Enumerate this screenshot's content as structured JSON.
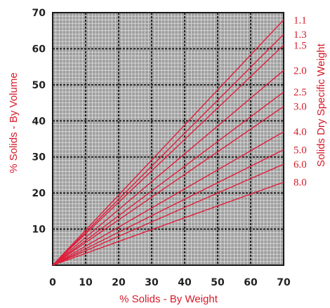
{
  "chart_data": {
    "type": "line",
    "xlabel": "% Solids - By Weight",
    "ylabel": "% Solids - By Volume",
    "y2label": "Solids Dry Specific Weight",
    "xlim": [
      0,
      70
    ],
    "ylim": [
      0,
      70
    ],
    "x_ticks": [
      "0",
      "10",
      "20",
      "30",
      "40",
      "50",
      "60",
      "70"
    ],
    "y_ticks": [
      "10",
      "20",
      "30",
      "40",
      "50",
      "60",
      "70"
    ],
    "grid": true,
    "series": [
      {
        "name": "1.1",
        "x": [
          0,
          70
        ],
        "y": [
          0,
          68
        ]
      },
      {
        "name": "1.3",
        "x": [
          0,
          70
        ],
        "y": [
          0,
          64
        ]
      },
      {
        "name": "1.5",
        "x": [
          0,
          70
        ],
        "y": [
          0,
          61
        ]
      },
      {
        "name": "2.0",
        "x": [
          0,
          70
        ],
        "y": [
          0,
          54
        ]
      },
      {
        "name": "2.5",
        "x": [
          0,
          70
        ],
        "y": [
          0,
          48
        ]
      },
      {
        "name": "3.0",
        "x": [
          0,
          70
        ],
        "y": [
          0,
          44
        ]
      },
      {
        "name": "4.0",
        "x": [
          0,
          70
        ],
        "y": [
          0,
          37
        ]
      },
      {
        "name": "5.0",
        "x": [
          0,
          70
        ],
        "y": [
          0,
          32
        ]
      },
      {
        "name": "6.0",
        "x": [
          0,
          70
        ],
        "y": [
          0,
          28
        ]
      },
      {
        "name": "8.0",
        "x": [
          0,
          70
        ],
        "y": [
          0,
          23
        ]
      }
    ],
    "colors": {
      "line": "#e01e3c",
      "label": "#d61a2a",
      "plot_bg": "#9e9e9e",
      "minor_grid": "#e8e8e8",
      "major_grid": "#1a1a1a"
    }
  }
}
